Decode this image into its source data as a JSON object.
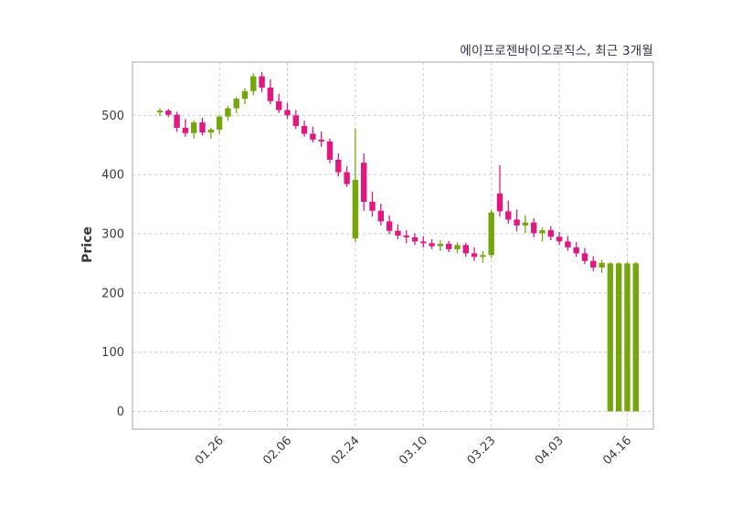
{
  "title": "에이프로젠바이오로직스, 최근 3개월",
  "chart_data": {
    "type": "candlestick",
    "title": "에이프로젠바이오로직스, 최근 3개월",
    "xlabel": "",
    "ylabel": "Price",
    "ylim": [
      -30,
      590
    ],
    "yticks": [
      0,
      100,
      200,
      300,
      400,
      500
    ],
    "xtick_labels": [
      "01.26",
      "02.06",
      "02.24",
      "03.10",
      "03.23",
      "04.03",
      "04.16"
    ],
    "xtick_indices": [
      7,
      15,
      23,
      31,
      39,
      47,
      55
    ],
    "grid": true,
    "legend": "none",
    "colors": {
      "up": "#76a60d",
      "down": "#e1187f",
      "grid": "#cccccc",
      "border": "#c4c4c4",
      "tick": "#3c3c3c",
      "title": "#2e3047",
      "background": "#ffffff"
    },
    "candles_format": [
      "open",
      "high",
      "low",
      "close"
    ],
    "candles": [
      [
        505,
        512,
        499,
        508
      ],
      [
        508,
        511,
        497,
        501
      ],
      [
        501,
        506,
        472,
        479
      ],
      [
        479,
        494,
        464,
        470
      ],
      [
        470,
        491,
        461,
        488
      ],
      [
        488,
        496,
        466,
        471
      ],
      [
        471,
        479,
        461,
        476
      ],
      [
        476,
        501,
        469,
        498
      ],
      [
        498,
        516,
        491,
        512
      ],
      [
        512,
        531,
        504,
        528
      ],
      [
        528,
        546,
        519,
        541
      ],
      [
        541,
        571,
        534,
        566
      ],
      [
        566,
        573,
        539,
        547
      ],
      [
        547,
        561,
        519,
        524
      ],
      [
        524,
        536,
        504,
        509
      ],
      [
        509,
        521,
        494,
        500
      ],
      [
        500,
        509,
        477,
        482
      ],
      [
        482,
        491,
        464,
        469
      ],
      [
        469,
        481,
        454,
        459
      ],
      [
        459,
        473,
        447,
        456
      ],
      [
        456,
        461,
        419,
        425
      ],
      [
        425,
        436,
        397,
        404
      ],
      [
        404,
        414,
        379,
        384
      ],
      [
        292,
        478,
        286,
        391
      ],
      [
        420,
        436,
        339,
        354
      ],
      [
        354,
        371,
        329,
        339
      ],
      [
        339,
        351,
        314,
        321
      ],
      [
        321,
        331,
        299,
        305
      ],
      [
        305,
        316,
        291,
        297
      ],
      [
        297,
        306,
        284,
        294
      ],
      [
        294,
        301,
        281,
        287
      ],
      [
        287,
        296,
        277,
        284
      ],
      [
        284,
        291,
        274,
        279
      ],
      [
        279,
        289,
        271,
        283
      ],
      [
        283,
        288,
        269,
        274
      ],
      [
        274,
        286,
        267,
        281
      ],
      [
        281,
        285,
        261,
        267
      ],
      [
        267,
        277,
        254,
        261
      ],
      [
        261,
        271,
        251,
        264
      ],
      [
        264,
        341,
        259,
        336
      ],
      [
        368,
        416,
        329,
        338
      ],
      [
        338,
        356,
        317,
        324
      ],
      [
        324,
        341,
        304,
        314
      ],
      [
        314,
        331,
        301,
        319
      ],
      [
        319,
        326,
        294,
        301
      ],
      [
        301,
        311,
        287,
        306
      ],
      [
        306,
        313,
        289,
        295
      ],
      [
        295,
        303,
        281,
        287
      ],
      [
        287,
        296,
        271,
        277
      ],
      [
        277,
        286,
        261,
        267
      ],
      [
        267,
        276,
        249,
        254
      ],
      [
        254,
        262,
        237,
        243
      ],
      [
        243,
        256,
        234,
        251
      ],
      [
        0,
        252,
        0,
        250
      ],
      [
        0,
        252,
        0,
        250
      ],
      [
        0,
        252,
        0,
        250
      ],
      [
        0,
        252,
        0,
        250
      ]
    ]
  }
}
